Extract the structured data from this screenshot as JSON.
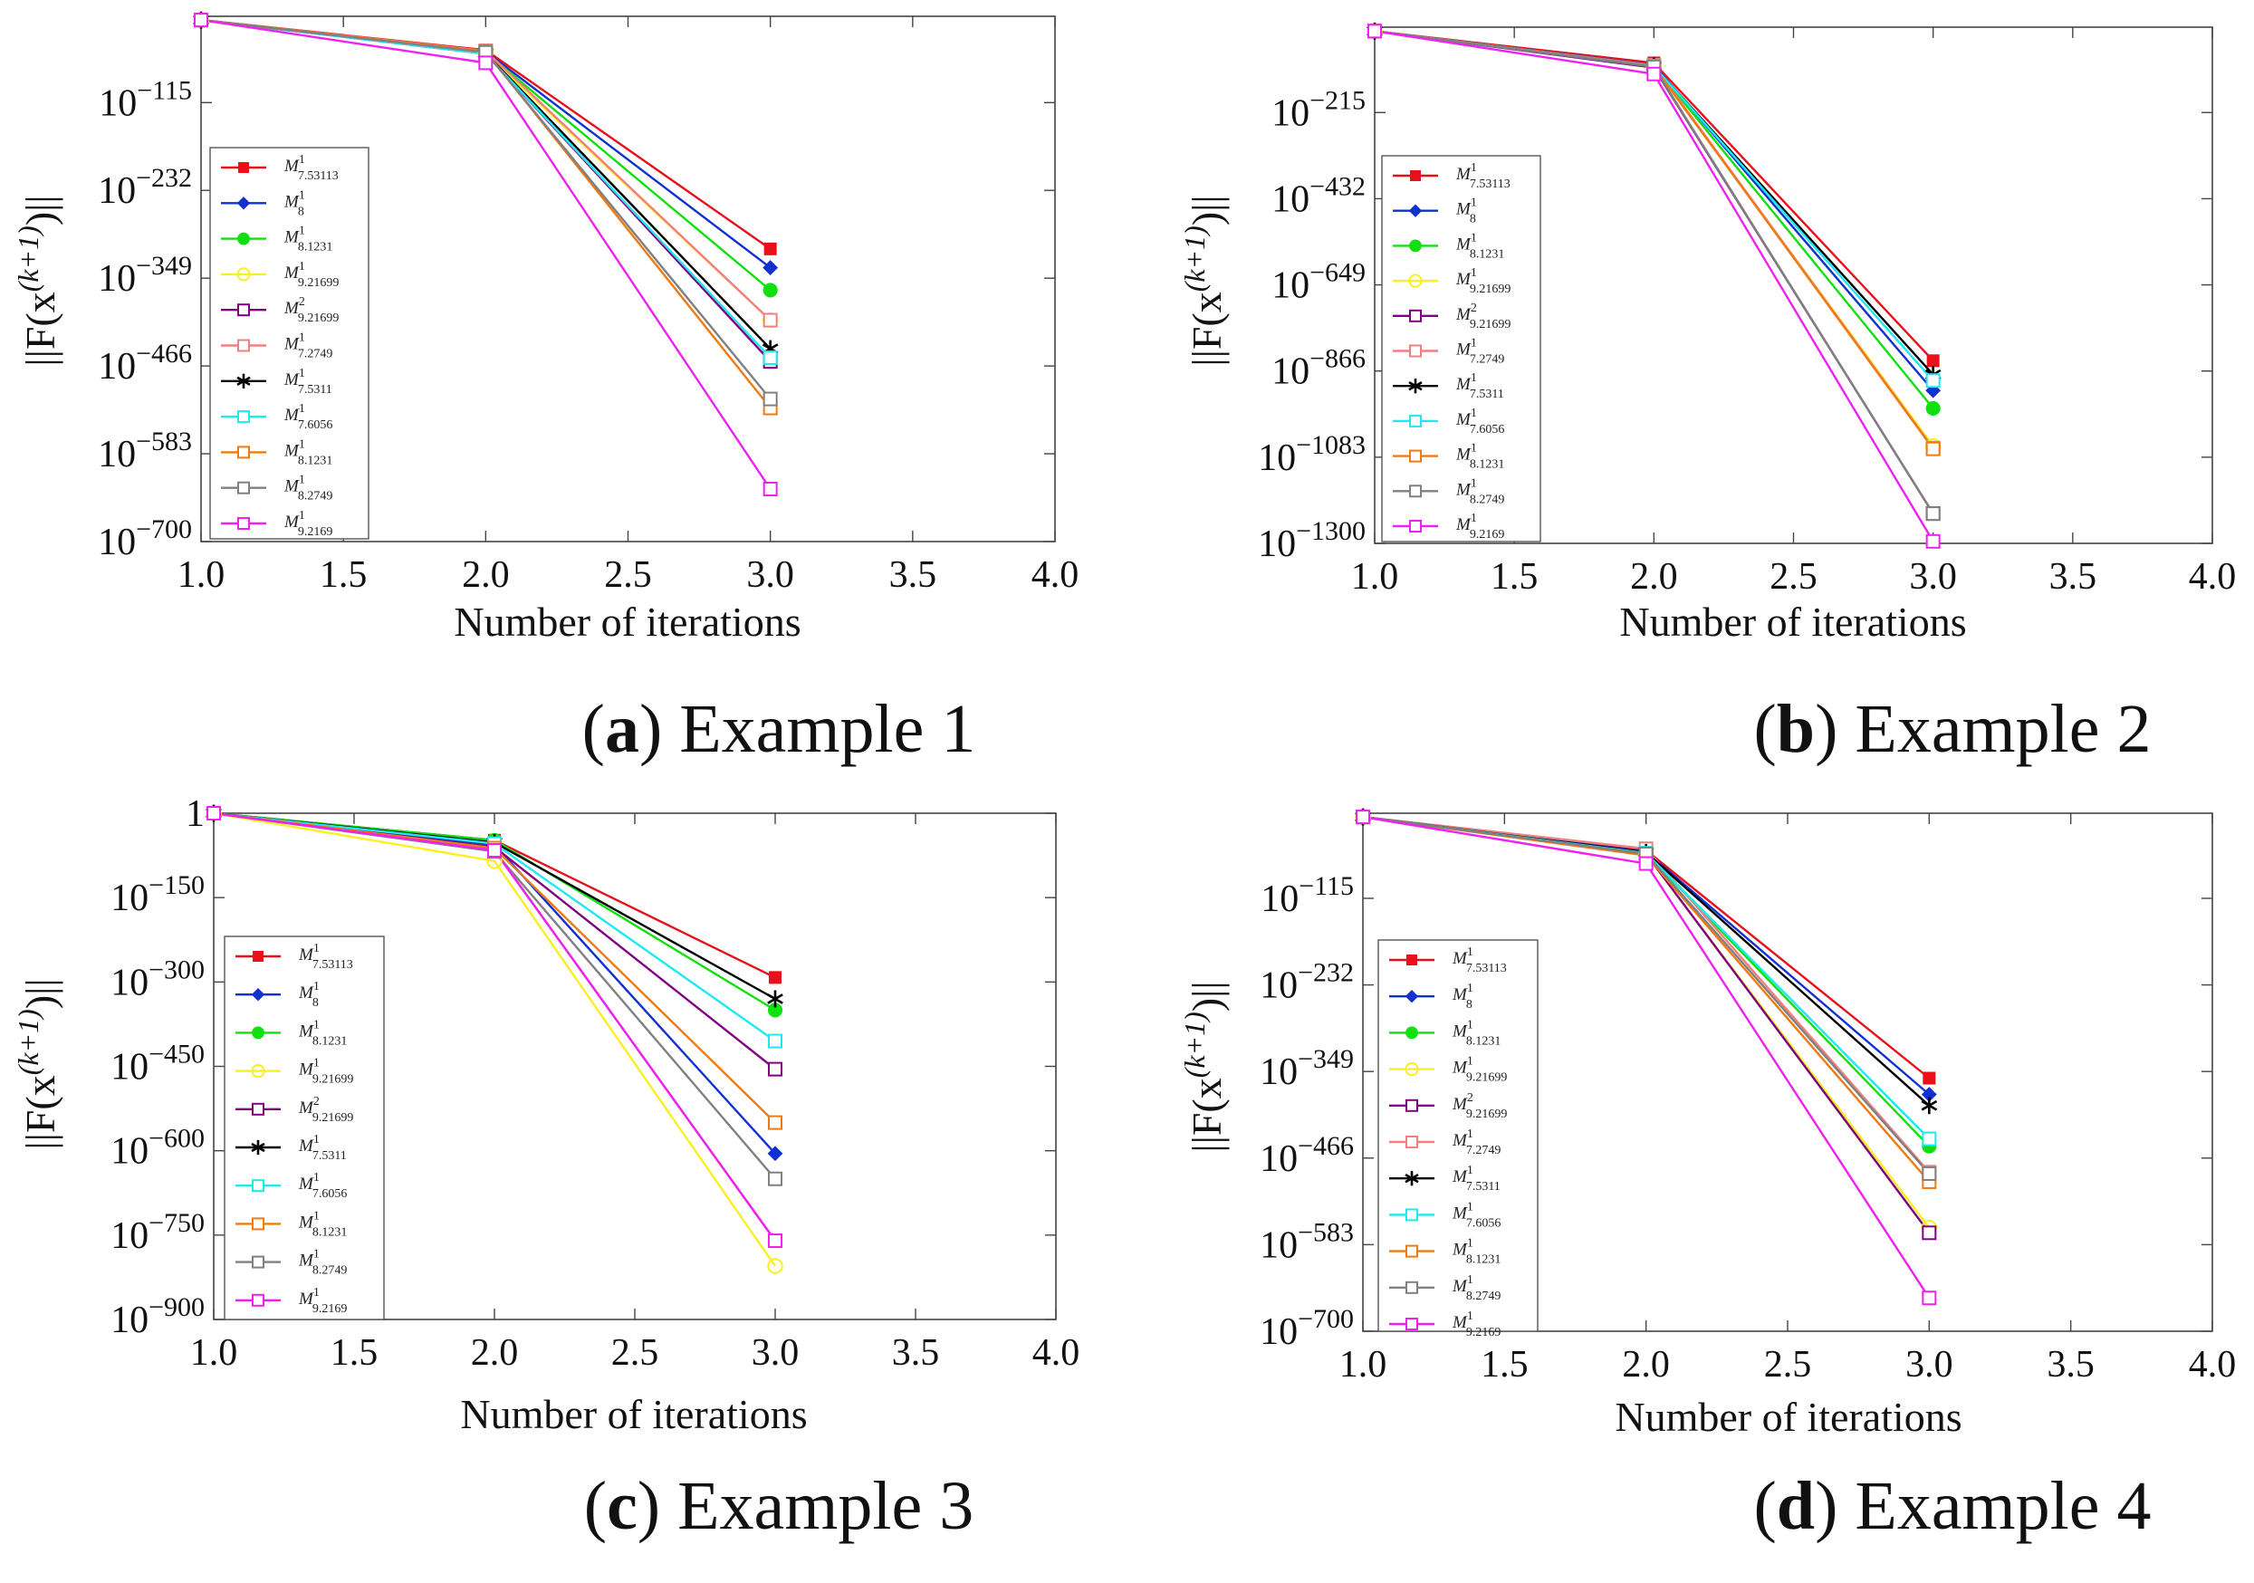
{
  "figure": {
    "legend_labels": [
      {
        "base": "M",
        "sub": "7.53113",
        "sup": "1"
      },
      {
        "base": "M",
        "sub": "8",
        "sup": "1"
      },
      {
        "base": "M",
        "sub": "8.1231",
        "sup": "1"
      },
      {
        "base": "M",
        "sub": "9.21699",
        "sup": "1"
      },
      {
        "base": "M",
        "sub": "9.21699",
        "sup": "2"
      },
      {
        "base": "M",
        "sub": "7.2749",
        "sup": "1"
      },
      {
        "base": "M",
        "sub": "7.5311",
        "sup": "1"
      },
      {
        "base": "M",
        "sub": "7.6056",
        "sup": "1"
      },
      {
        "base": "M",
        "sub": "8.1231",
        "sup": "1"
      },
      {
        "base": "M",
        "sub": "8.2749",
        "sup": "1"
      },
      {
        "base": "M",
        "sub": "9.2169",
        "sup": "1"
      }
    ],
    "series_colors": [
      "#e8101a",
      "#1030d0",
      "#10e010",
      "#f8f020",
      "#800080",
      "#f08080",
      "#000000",
      "#20e8f0",
      "#f07a10",
      "#808080",
      "#f020f0"
    ],
    "series_markers": [
      "square-filled",
      "diamond-filled",
      "circle-filled",
      "circle-open",
      "square-open",
      "square-open",
      "star",
      "square-open",
      "square-open",
      "square-open",
      "square-open"
    ]
  },
  "chart_data": [
    {
      "type": "line",
      "caption_letter": "a",
      "caption_text": "Example 1",
      "title": "",
      "xlabel": "Number of iterations",
      "ylabel": "||F(x^(k+1))||",
      "ylabel_main": "||F(x",
      "ylabel_sup": "(k+1)",
      "ylabel_close": ")||",
      "xlim": [
        1.0,
        4.0
      ],
      "ylim": [
        -700,
        0
      ],
      "xticks": [
        "1.0",
        "1.5",
        "2.0",
        "2.5",
        "3.0",
        "3.5",
        "4.0"
      ],
      "yticks": [
        {
          "value": -115,
          "label": "−115"
        },
        {
          "value": -232,
          "label": "−232"
        },
        {
          "value": -349,
          "label": "−349"
        },
        {
          "value": -466,
          "label": "−466"
        },
        {
          "value": -583,
          "label": "−583"
        },
        {
          "value": -700,
          "label": "−700"
        }
      ],
      "ytick_base": "10",
      "legend_order": [
        0,
        1,
        2,
        3,
        4,
        5,
        6,
        7,
        8,
        9,
        10
      ],
      "x": [
        1,
        2,
        3
      ],
      "series": [
        {
          "name": "M^1_7.53113",
          "values": [
            -5,
            -45,
            -310
          ]
        },
        {
          "name": "M^1_8",
          "values": [
            -5,
            -47,
            -335
          ]
        },
        {
          "name": "M^1_8.1231",
          "values": [
            -5,
            -48,
            -365
          ]
        },
        {
          "name": "M^1_9.21699",
          "values": [
            -5,
            -49,
            -405
          ]
        },
        {
          "name": "M^2_9.21699",
          "values": [
            -5,
            -50,
            -460
          ]
        },
        {
          "name": "M^1_7.2749",
          "values": [
            -5,
            -46,
            -405
          ]
        },
        {
          "name": "M^1_7.5311",
          "values": [
            -5,
            -49,
            -443
          ]
        },
        {
          "name": "M^1_7.6056",
          "values": [
            -5,
            -50,
            -455
          ]
        },
        {
          "name": "M^1_8.1231",
          "values": [
            -5,
            -47,
            -522
          ]
        },
        {
          "name": "M^1_8.2749",
          "values": [
            -5,
            -48,
            -510
          ]
        },
        {
          "name": "M^1_9.2169",
          "values": [
            -5,
            -62,
            -630
          ]
        }
      ]
    },
    {
      "type": "line",
      "caption_letter": "b",
      "caption_text": "Example 2",
      "title": "",
      "xlabel": "Number of iterations",
      "ylabel": "||F(x^(k+1))||",
      "ylabel_main": "||F(x",
      "ylabel_sup": "(k+1)",
      "ylabel_close": ")||",
      "xlim": [
        1.0,
        4.0
      ],
      "ylim": [
        -1300,
        0
      ],
      "xticks": [
        "1.0",
        "1.5",
        "2.0",
        "2.5",
        "3.0",
        "3.5",
        "4.0"
      ],
      "yticks": [
        {
          "value": -215,
          "label": "−215"
        },
        {
          "value": -432,
          "label": "−432"
        },
        {
          "value": -649,
          "label": "−649"
        },
        {
          "value": -866,
          "label": "−866"
        },
        {
          "value": -1083,
          "label": "−1083"
        },
        {
          "value": -1300,
          "label": "−1300"
        }
      ],
      "ytick_base": "10",
      "legend_order": [
        0,
        1,
        2,
        3,
        4,
        5,
        6,
        7,
        8,
        9,
        10
      ],
      "x": [
        1,
        2,
        3
      ],
      "series": [
        {
          "name": "M^1_7.53113",
          "values": [
            -10,
            -90,
            -840
          ]
        },
        {
          "name": "M^1_8",
          "values": [
            -10,
            -95,
            -915
          ]
        },
        {
          "name": "M^1_8.1231",
          "values": [
            -10,
            -97,
            -960
          ]
        },
        {
          "name": "M^1_9.21699",
          "values": [
            -10,
            -100,
            -1055
          ]
        },
        {
          "name": "M^2_9.21699",
          "values": [
            -10,
            -102,
            -1225
          ]
        },
        {
          "name": "M^1_7.2749",
          "values": [
            -10,
            -96,
            -1060
          ]
        },
        {
          "name": "M^1_7.5311",
          "values": [
            -10,
            -98,
            -875
          ]
        },
        {
          "name": "M^1_7.6056",
          "values": [
            -10,
            -98,
            -890
          ]
        },
        {
          "name": "M^1_8.1231",
          "values": [
            -10,
            -99,
            -1062
          ]
        },
        {
          "name": "M^1_8.2749",
          "values": [
            -10,
            -100,
            -1225
          ]
        },
        {
          "name": "M^1_9.2169",
          "values": [
            -10,
            -118,
            -1295
          ]
        }
      ]
    },
    {
      "type": "line",
      "caption_letter": "c",
      "caption_text": "Example 3",
      "title": "",
      "xlabel": "Number of iterations",
      "ylabel": "||F(x^(k+1))||",
      "ylabel_main": "||F(x",
      "ylabel_sup": "(k+1)",
      "ylabel_close": ")||",
      "xlim": [
        1.0,
        4.0
      ],
      "ylim": [
        -900,
        0
      ],
      "xticks": [
        "1.0",
        "1.5",
        "2.0",
        "2.5",
        "3.0",
        "3.5",
        "4.0"
      ],
      "yticks": [
        {
          "value": 0,
          "label": "1"
        },
        {
          "value": -150,
          "label": "−150"
        },
        {
          "value": -300,
          "label": "−300"
        },
        {
          "value": -450,
          "label": "−450"
        },
        {
          "value": -600,
          "label": "−600"
        },
        {
          "value": -750,
          "label": "−750"
        },
        {
          "value": -900,
          "label": "−900"
        }
      ],
      "ytick_base": "10",
      "legend_order": [
        0,
        1,
        2,
        3,
        4,
        6,
        7,
        8,
        9,
        10
      ],
      "x": [
        1,
        2,
        3
      ],
      "series": [
        {
          "name": "M^1_7.53113",
          "values": [
            0,
            -48,
            -292
          ]
        },
        {
          "name": "M^1_8",
          "values": [
            0,
            -56,
            -605
          ]
        },
        {
          "name": "M^1_8.1231",
          "values": [
            0,
            -48,
            -350
          ]
        },
        {
          "name": "M^1_9.21699",
          "values": [
            0,
            -85,
            -805
          ]
        },
        {
          "name": "M^2_9.21699",
          "values": [
            0,
            -60,
            -455
          ]
        },
        {
          "name": "M^1_7.2749",
          "values": [
            0,
            -65,
            -760
          ]
        },
        {
          "name": "M^1_7.5311",
          "values": [
            0,
            -52,
            -330
          ]
        },
        {
          "name": "M^1_7.6056",
          "values": [
            0,
            -54,
            -405
          ]
        },
        {
          "name": "M^1_8.1231",
          "values": [
            0,
            -62,
            -550
          ]
        },
        {
          "name": "M^1_8.2749",
          "values": [
            0,
            -68,
            -650
          ]
        },
        {
          "name": "M^1_9.2169",
          "values": [
            0,
            -66,
            -760
          ]
        }
      ]
    },
    {
      "type": "line",
      "caption_letter": "d",
      "caption_text": "Example 4",
      "title": "",
      "xlabel": "Number of iterations",
      "ylabel": "||F(x^(k+1))||",
      "ylabel_main": "||F(x",
      "ylabel_sup": "(k+1)",
      "ylabel_close": ")||",
      "xlim": [
        1.0,
        4.0
      ],
      "ylim": [
        -700,
        0
      ],
      "xticks": [
        "1.0",
        "1.5",
        "2.0",
        "2.5",
        "3.0",
        "3.5",
        "4.0"
      ],
      "yticks": [
        {
          "value": -115,
          "label": "−115"
        },
        {
          "value": -232,
          "label": "−232"
        },
        {
          "value": -349,
          "label": "−349"
        },
        {
          "value": -466,
          "label": "−466"
        },
        {
          "value": -583,
          "label": "−583"
        },
        {
          "value": -700,
          "label": "−700"
        }
      ],
      "ytick_base": "10",
      "legend_order": [
        0,
        1,
        2,
        3,
        4,
        5,
        6,
        7,
        8,
        9,
        10
      ],
      "x": [
        1,
        2,
        3
      ],
      "series": [
        {
          "name": "M^1_7.53113",
          "values": [
            -5,
            -50,
            -358
          ]
        },
        {
          "name": "M^1_8",
          "values": [
            -5,
            -52,
            -380
          ]
        },
        {
          "name": "M^1_8.1231",
          "values": [
            -5,
            -54,
            -450
          ]
        },
        {
          "name": "M^1_9.21699",
          "values": [
            -5,
            -56,
            -560
          ]
        },
        {
          "name": "M^2_9.21699",
          "values": [
            -5,
            -55,
            -567
          ]
        },
        {
          "name": "M^1_7.2749",
          "values": [
            -5,
            -48,
            -485
          ]
        },
        {
          "name": "M^1_7.5311",
          "values": [
            -5,
            -53,
            -395
          ]
        },
        {
          "name": "M^1_7.6056",
          "values": [
            -5,
            -54,
            -440
          ]
        },
        {
          "name": "M^1_8.1231",
          "values": [
            -5,
            -57,
            -498
          ]
        },
        {
          "name": "M^1_8.2749",
          "values": [
            -5,
            -55,
            -487
          ]
        },
        {
          "name": "M^1_9.2169",
          "values": [
            -5,
            -68,
            -655
          ]
        }
      ]
    }
  ]
}
